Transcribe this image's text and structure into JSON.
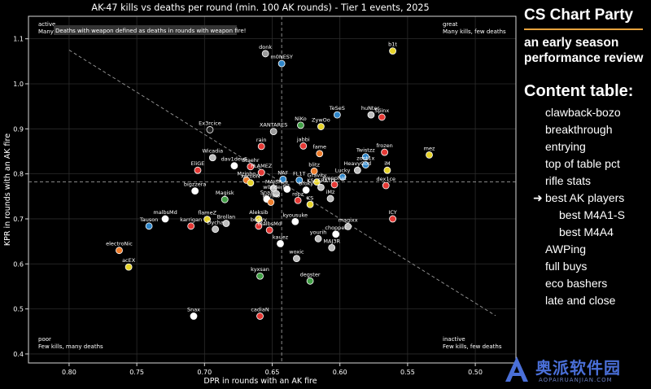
{
  "chart_data": {
    "type": "scatter",
    "title": "AK-47 kills vs deaths per round (min. 100 AK rounds) - Tier 1 events, 2025",
    "xlabel": "DPR in rounds with an AK fire",
    "ylabel": "KPR in rounds with an AK fire",
    "xlim": [
      0.83,
      0.47
    ],
    "ylim": [
      0.38,
      1.15
    ],
    "x_inverted": true,
    "x_ticks": [
      "0.80",
      "0.75",
      "0.70",
      "0.65",
      "0.60",
      "0.55",
      "0.50"
    ],
    "x_tick_values": [
      0.8,
      0.75,
      0.7,
      0.65,
      0.6,
      0.55,
      0.5
    ],
    "y_ticks": [
      "0.4",
      "0.5",
      "0.6",
      "0.7",
      "0.8",
      "0.9",
      "1.0",
      "1.1"
    ],
    "y_tick_values": [
      0.4,
      0.5,
      0.6,
      0.7,
      0.8,
      0.9,
      1.0,
      1.1
    ],
    "grid": true,
    "mean_x": 0.643,
    "mean_y": 0.782,
    "trend_line": [
      [
        0.8,
        1.075
      ],
      [
        0.485,
        0.485
      ]
    ],
    "note": "Deaths with weapon defined as deaths in rounds with weapon fire!",
    "quadrants": {
      "top_left": {
        "label": "active",
        "desc": "Many kills, many deaths"
      },
      "top_right": {
        "label": "great",
        "desc": "Many kills, few deaths"
      },
      "bottom_left": {
        "label": "poor",
        "desc": "Few kills, many deaths"
      },
      "bottom_right": {
        "label": "inactive",
        "desc": "Few kills, few deaths"
      }
    },
    "points": [
      {
        "name": "b1t",
        "x": 0.561,
        "y": 1.073,
        "color": "#e6d32a"
      },
      {
        "name": "donk",
        "x": 0.655,
        "y": 1.067,
        "color": "#9a9a9a"
      },
      {
        "name": "m0NESY",
        "x": 0.643,
        "y": 1.045,
        "color": "#2f86c9"
      },
      {
        "name": "huNter-",
        "x": 0.577,
        "y": 0.931,
        "color": "#bdbdbd"
      },
      {
        "name": "Spinx",
        "x": 0.569,
        "y": 0.926,
        "color": "#e53935"
      },
      {
        "name": "TeSeS",
        "x": 0.602,
        "y": 0.931,
        "color": "#2f86c9"
      },
      {
        "name": "NiKo",
        "x": 0.629,
        "y": 0.908,
        "color": "#43a047"
      },
      {
        "name": "ZywOo",
        "x": 0.614,
        "y": 0.905,
        "color": "#e6d32a"
      },
      {
        "name": "Ex3rcice",
        "x": 0.696,
        "y": 0.898,
        "color": "#222222"
      },
      {
        "name": "XANTARES",
        "x": 0.649,
        "y": 0.894,
        "color": "#9a9a9a"
      },
      {
        "name": "jabbi",
        "x": 0.627,
        "y": 0.862,
        "color": "#e53935"
      },
      {
        "name": "rain",
        "x": 0.658,
        "y": 0.861,
        "color": "#e53935"
      },
      {
        "name": "frozen",
        "x": 0.567,
        "y": 0.848,
        "color": "#e53935"
      },
      {
        "name": "mez",
        "x": 0.534,
        "y": 0.842,
        "color": "#e6d32a"
      },
      {
        "name": "fame",
        "x": 0.615,
        "y": 0.845,
        "color": "#ef7d2c"
      },
      {
        "name": "Twistzz",
        "x": 0.581,
        "y": 0.838,
        "color": "#2f86c9"
      },
      {
        "name": "Wicadia",
        "x": 0.694,
        "y": 0.836,
        "color": "#bdbdbd"
      },
      {
        "name": "zont1x",
        "x": 0.581,
        "y": 0.82,
        "color": "#2f86c9"
      },
      {
        "name": "dav1deuS",
        "x": 0.678,
        "y": 0.818,
        "color": "#ffffff"
      },
      {
        "name": "Staehr",
        "x": 0.666,
        "y": 0.816,
        "color": "#e53935"
      },
      {
        "name": "HeavyGod",
        "x": 0.587,
        "y": 0.808,
        "color": "#bdbdbd"
      },
      {
        "name": "iM",
        "x": 0.565,
        "y": 0.808,
        "color": "#e6d32a"
      },
      {
        "name": "EliGE",
        "x": 0.705,
        "y": 0.808,
        "color": "#e53935"
      },
      {
        "name": "FLAMEZ",
        "x": 0.658,
        "y": 0.803,
        "color": "#e53935"
      },
      {
        "name": "blitz",
        "x": 0.619,
        "y": 0.806,
        "color": "#ef7d2c"
      },
      {
        "name": "Lucky",
        "x": 0.598,
        "y": 0.793,
        "color": "#2f86c9"
      },
      {
        "name": "NAF",
        "x": 0.642,
        "y": 0.788,
        "color": "#2f86c9"
      },
      {
        "name": "FL1T",
        "x": 0.63,
        "y": 0.786,
        "color": "#2f86c9"
      },
      {
        "name": "Mzinho",
        "x": 0.669,
        "y": 0.786,
        "color": "#ef7d2c"
      },
      {
        "name": "Gravity",
        "x": 0.617,
        "y": 0.782,
        "color": "#e6d32a"
      },
      {
        "name": "xertioN",
        "x": 0.666,
        "y": 0.78,
        "color": "#e6d32a"
      },
      {
        "name": "dex1ce",
        "x": 0.566,
        "y": 0.774,
        "color": "#e53935"
      },
      {
        "name": "bigzzera",
        "x": 0.707,
        "y": 0.762,
        "color": "#ffffff"
      },
      {
        "name": "MAJ3R",
        "x": 0.649,
        "y": 0.768,
        "color": "#bdbdbd"
      },
      {
        "name": "jL",
        "x": 0.639,
        "y": 0.766,
        "color": "#ffffff"
      },
      {
        "name": "broky",
        "x": 0.625,
        "y": 0.764,
        "color": "#ffffff"
      },
      {
        "name": "KSCERATO",
        "x": 0.614,
        "y": 0.77,
        "color": "#bdbdbd"
      },
      {
        "name": "Jimpphat",
        "x": 0.604,
        "y": 0.776,
        "color": "#e53935"
      },
      {
        "name": "w0nderful",
        "x": 0.647,
        "y": 0.756,
        "color": "#bdbdbd"
      },
      {
        "name": "Magisk",
        "x": 0.685,
        "y": 0.743,
        "color": "#43a047"
      },
      {
        "name": "Snax",
        "x": 0.654,
        "y": 0.744,
        "color": "#ffffff"
      },
      {
        "name": "Techno",
        "x": 0.651,
        "y": 0.737,
        "color": "#ef7d2c"
      },
      {
        "name": "ropz",
        "x": 0.631,
        "y": 0.741,
        "color": "#e53935"
      },
      {
        "name": "iMz",
        "x": 0.607,
        "y": 0.745,
        "color": "#bdbdbd"
      },
      {
        "name": "KS",
        "x": 0.622,
        "y": 0.732,
        "color": "#e6d32a"
      },
      {
        "name": "malbsMd",
        "x": 0.729,
        "y": 0.7,
        "color": "#ffffff"
      },
      {
        "name": "flameZ",
        "x": 0.698,
        "y": 0.699,
        "color": "#e6d32a"
      },
      {
        "name": "Aleksib",
        "x": 0.66,
        "y": 0.7,
        "color": "#e6d32a"
      },
      {
        "name": "Brollan",
        "x": 0.684,
        "y": 0.69,
        "color": "#bdbdbd"
      },
      {
        "name": "kyousuke",
        "x": 0.633,
        "y": 0.694,
        "color": "#ffffff"
      },
      {
        "name": "ICY",
        "x": 0.561,
        "y": 0.7,
        "color": "#e53935"
      },
      {
        "name": "Tauson",
        "x": 0.741,
        "y": 0.684,
        "color": "#2f86c9"
      },
      {
        "name": "karrigan",
        "x": 0.71,
        "y": 0.684,
        "color": "#e53935"
      },
      {
        "name": "Dycha",
        "x": 0.692,
        "y": 0.677,
        "color": "#bdbdbd"
      },
      {
        "name": "bodyy",
        "x": 0.66,
        "y": 0.684,
        "color": "#e53935"
      },
      {
        "name": "malbsMd",
        "x": 0.652,
        "y": 0.675,
        "color": "#e53935"
      },
      {
        "name": "magixx",
        "x": 0.594,
        "y": 0.683,
        "color": "#bdbdbd"
      },
      {
        "name": "chopper",
        "x": 0.603,
        "y": 0.666,
        "color": "#ffffff"
      },
      {
        "name": "yourih",
        "x": 0.616,
        "y": 0.656,
        "color": "#bdbdbd"
      },
      {
        "name": "kauez",
        "x": 0.644,
        "y": 0.645,
        "color": "#ffffff"
      },
      {
        "name": "MAJ3R",
        "x": 0.606,
        "y": 0.636,
        "color": "#bdbdbd"
      },
      {
        "name": "electroNic",
        "x": 0.763,
        "y": 0.63,
        "color": "#ef7d2c"
      },
      {
        "name": "woxic",
        "x": 0.632,
        "y": 0.612,
        "color": "#bdbdbd"
      },
      {
        "name": "acEX",
        "x": 0.756,
        "y": 0.593,
        "color": "#e6d32a"
      },
      {
        "name": "kyxsan",
        "x": 0.659,
        "y": 0.573,
        "color": "#43a047"
      },
      {
        "name": "degster",
        "x": 0.622,
        "y": 0.562,
        "color": "#43a047"
      },
      {
        "name": "Snax",
        "x": 0.708,
        "y": 0.484,
        "color": "#ffffff"
      },
      {
        "name": "cadiaN",
        "x": 0.659,
        "y": 0.484,
        "color": "#e53935"
      }
    ]
  },
  "sidebar": {
    "brand": "CS Chart Party",
    "subtitle": "an early season performance review",
    "toc_heading": "Content table:",
    "toc_items": [
      {
        "label": "clawback-bozo",
        "sub": false,
        "current": false
      },
      {
        "label": "breakthrough",
        "sub": false,
        "current": false
      },
      {
        "label": "entrying",
        "sub": false,
        "current": false
      },
      {
        "label": "top of table pct",
        "sub": false,
        "current": false
      },
      {
        "label": "rifle stats",
        "sub": false,
        "current": false
      },
      {
        "label": "best AK players",
        "sub": false,
        "current": true
      },
      {
        "label": "best M4A1-S",
        "sub": true,
        "current": false
      },
      {
        "label": "best M4A4",
        "sub": true,
        "current": false
      },
      {
        "label": "AWPing",
        "sub": false,
        "current": false
      },
      {
        "label": "full buys",
        "sub": false,
        "current": false
      },
      {
        "label": "eco bashers",
        "sub": false,
        "current": false
      },
      {
        "label": "late and close",
        "sub": false,
        "current": false
      }
    ],
    "current_marker": "➜"
  },
  "watermark": {
    "name": "奥派软件园",
    "url": "AOPAIRUANJIAN.COM",
    "color": "#4a6fd8"
  }
}
